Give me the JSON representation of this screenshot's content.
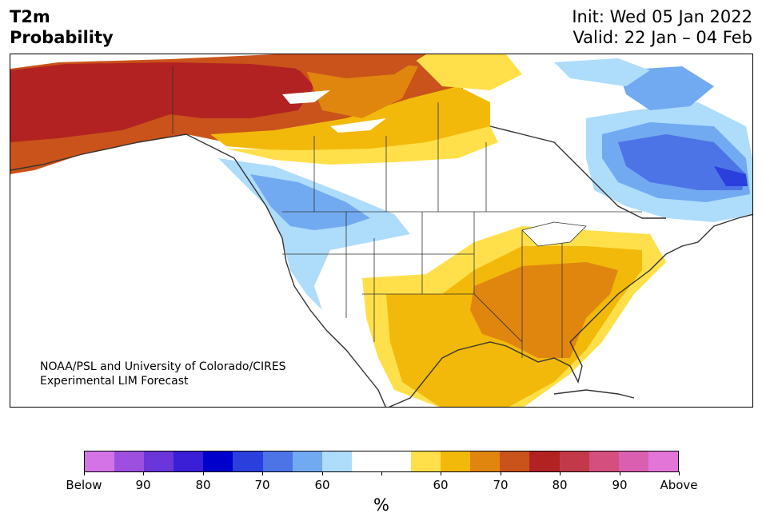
{
  "header": {
    "title_line1": "T2m",
    "title_line2": "Probability",
    "init": "Init: Wed 05 Jan 2022",
    "valid": "Valid: 22 Jan – 04 Feb"
  },
  "credit": {
    "line1": "NOAA/PSL and University of Colorado/CIRES",
    "line2": "Experimental LIM Forecast"
  },
  "colorbar": {
    "colors": [
      "#d472e8",
      "#9d4fe0",
      "#6a35d9",
      "#3a1fd6",
      "#0000cc",
      "#2a3fdb",
      "#4d74e6",
      "#71aaf0",
      "#aedcfb",
      "#ffffff",
      "#ffffff",
      "#ffe04a",
      "#f2b90a",
      "#e0860f",
      "#c9531a",
      "#b22222",
      "#c23a4a",
      "#d44f7d",
      "#db5fb0",
      "#e374d8"
    ],
    "labels": [
      "Below",
      "90",
      "80",
      "70",
      "60",
      "",
      "60",
      "70",
      "80",
      "90",
      "Above"
    ],
    "unit": "%"
  },
  "map": {
    "regions": [
      "Alaska",
      "Canada",
      "United States",
      "Mexico",
      "Greenland",
      "Cuba"
    ],
    "anomaly_colors": {
      "above_60": "#ffe04a",
      "above_65": "#f2b90a",
      "above_70": "#e0860f",
      "above_75": "#c9531a",
      "above_80": "#b22222",
      "below_60": "#aedcfb",
      "below_65": "#71aaf0",
      "below_70": "#4d74e6",
      "below_80": "#2a3fdb",
      "neutral": "#ffffff"
    }
  }
}
